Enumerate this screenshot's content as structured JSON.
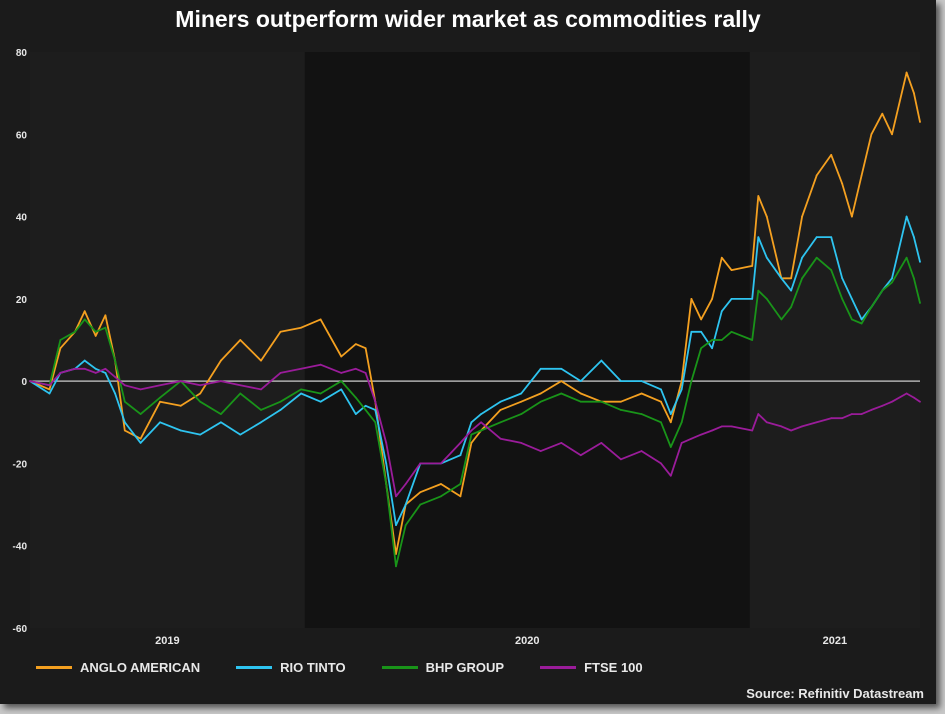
{
  "chart_data": {
    "type": "line",
    "title": "Miners outperform wider market as commodities rally",
    "xlabel": "",
    "ylabel": "",
    "ylim": [
      -60,
      80
    ],
    "yticks": [
      80,
      60,
      40,
      20,
      0,
      -20,
      -40,
      -60
    ],
    "xlim": [
      "2019-05-20",
      "2021-05-21"
    ],
    "xtick_labels": [
      "2019",
      "2020",
      "2021"
    ],
    "shaded_years": [
      "2019",
      "2021"
    ],
    "reference_line": 0,
    "grid": false,
    "legend_position": "bottom",
    "source": "Source: Refinitiv Datastream",
    "x": [
      "2019-05-20",
      "2019-06-05",
      "2019-06-14",
      "2019-06-26",
      "2019-07-04",
      "2019-07-13",
      "2019-07-21",
      "2019-07-29",
      "2019-08-06",
      "2019-08-19",
      "2019-09-04",
      "2019-09-21",
      "2019-10-07",
      "2019-10-24",
      "2019-11-09",
      "2019-11-26",
      "2019-12-12",
      "2019-12-29",
      "2020-01-14",
      "2020-01-31",
      "2020-02-12",
      "2020-02-20",
      "2020-02-28",
      "2020-03-08",
      "2020-03-16",
      "2020-03-24",
      "2020-04-05",
      "2020-04-22",
      "2020-05-08",
      "2020-05-17",
      "2020-05-25",
      "2020-06-10",
      "2020-06-27",
      "2020-07-13",
      "2020-07-30",
      "2020-08-15",
      "2020-09-01",
      "2020-09-17",
      "2020-10-04",
      "2020-10-20",
      "2020-10-28",
      "2020-11-06",
      "2020-11-14",
      "2020-11-22",
      "2020-12-01",
      "2020-12-09",
      "2020-12-17",
      "2021-01-03",
      "2021-01-08",
      "2021-01-15",
      "2021-01-27",
      "2021-02-04",
      "2021-02-13",
      "2021-02-25",
      "2021-03-09",
      "2021-03-18",
      "2021-03-26",
      "2021-04-03",
      "2021-04-11",
      "2021-04-20",
      "2021-04-28",
      "2021-05-10",
      "2021-05-16",
      "2021-05-21"
    ],
    "series": [
      {
        "name": "ANGLO AMERICAN",
        "color": "#f4a020",
        "values": [
          0,
          -2,
          8,
          12,
          17,
          11,
          16,
          5,
          -12,
          -14,
          -5,
          -6,
          -3,
          5,
          10,
          5,
          12,
          13,
          15,
          6,
          9,
          8,
          -5,
          -25,
          -42,
          -30,
          -27,
          -25,
          -28,
          -15,
          -12,
          -7,
          -5,
          -3,
          0,
          -3,
          -5,
          -5,
          -3,
          -5,
          -10,
          0,
          20,
          15,
          20,
          30,
          27,
          28,
          45,
          40,
          25,
          25,
          40,
          50,
          55,
          48,
          40,
          50,
          60,
          65,
          60,
          75,
          70,
          63
        ]
      },
      {
        "name": "RIO TINTO",
        "color": "#2ec4f0",
        "values": [
          0,
          -3,
          2,
          3,
          5,
          3,
          2,
          -3,
          -10,
          -15,
          -10,
          -12,
          -13,
          -10,
          -13,
          -10,
          -7,
          -3,
          -5,
          -2,
          -8,
          -6,
          -7,
          -20,
          -35,
          -30,
          -20,
          -20,
          -18,
          -10,
          -8,
          -5,
          -3,
          3,
          3,
          0,
          5,
          0,
          0,
          -2,
          -8,
          -2,
          12,
          12,
          8,
          17,
          20,
          20,
          35,
          30,
          25,
          22,
          30,
          35,
          35,
          25,
          20,
          15,
          18,
          22,
          25,
          40,
          35,
          29
        ]
      },
      {
        "name": "BHP GROUP",
        "color": "#199419",
        "values": [
          0,
          -1,
          10,
          12,
          15,
          12,
          13,
          5,
          -5,
          -8,
          -4,
          0,
          -5,
          -8,
          -3,
          -7,
          -5,
          -2,
          -3,
          0,
          -4,
          -7,
          -10,
          -25,
          -45,
          -35,
          -30,
          -28,
          -25,
          -13,
          -12,
          -10,
          -8,
          -5,
          -3,
          -5,
          -5,
          -7,
          -8,
          -10,
          -16,
          -10,
          0,
          8,
          10,
          10,
          12,
          10,
          22,
          20,
          15,
          18,
          25,
          30,
          27,
          20,
          15,
          14,
          18,
          22,
          24,
          30,
          25,
          19
        ]
      },
      {
        "name": "FTSE 100",
        "color": "#9a1c9a",
        "values": [
          0,
          -1,
          2,
          3,
          3,
          2,
          3,
          1,
          -1,
          -2,
          -1,
          0,
          -1,
          0,
          -1,
          -2,
          2,
          3,
          4,
          2,
          3,
          2,
          -5,
          -15,
          -28,
          -25,
          -20,
          -20,
          -15,
          -12,
          -10,
          -14,
          -15,
          -17,
          -15,
          -18,
          -15,
          -19,
          -17,
          -20,
          -23,
          -15,
          -14,
          -13,
          -12,
          -11,
          -11,
          -12,
          -8,
          -10,
          -11,
          -12,
          -11,
          -10,
          -9,
          -9,
          -8,
          -8,
          -7,
          -6,
          -5,
          -3,
          -4,
          -5
        ]
      }
    ]
  }
}
